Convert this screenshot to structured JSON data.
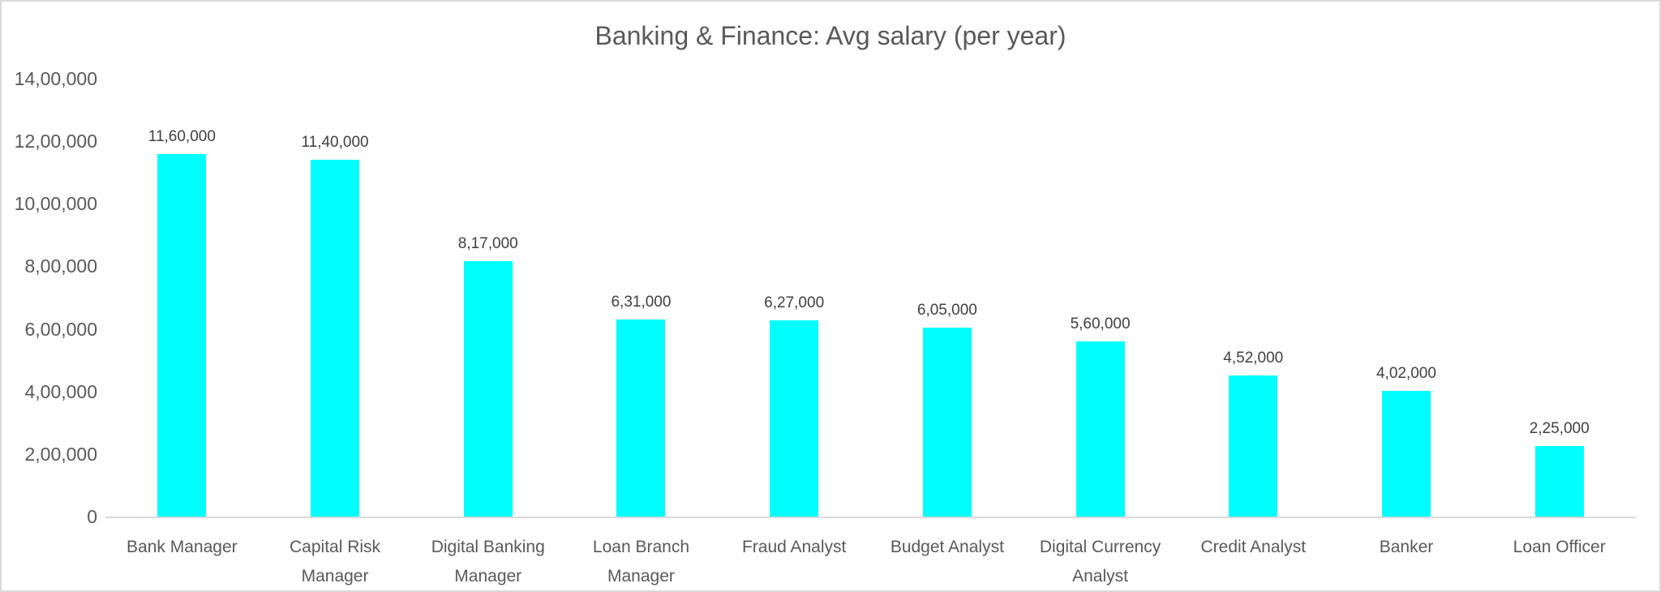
{
  "chart_data": {
    "type": "bar",
    "title": "Banking & Finance: Avg salary (per year)",
    "categories": [
      "Bank Manager",
      "Capital Risk Manager",
      "Digital Banking Manager",
      "Loan Branch Manager",
      "Fraud Analyst",
      "Budget Analyst",
      "Digital Currency Analyst",
      "Credit Analyst",
      "Banker",
      "Loan Officer"
    ],
    "values": [
      1160000,
      1140000,
      817000,
      631000,
      627000,
      605000,
      560000,
      452000,
      402000,
      225000
    ],
    "data_labels": [
      "11,60,000",
      "11,40,000",
      "8,17,000",
      "6,31,000",
      "6,27,000",
      "6,05,000",
      "5,60,000",
      "4,52,000",
      "4,02,000",
      "2,25,000"
    ],
    "y_ticks": [
      {
        "value": 1400000,
        "label": "14,00,000"
      },
      {
        "value": 1200000,
        "label": "12,00,000"
      },
      {
        "value": 1000000,
        "label": "10,00,000"
      },
      {
        "value": 800000,
        "label": "8,00,000"
      },
      {
        "value": 600000,
        "label": "6,00,000"
      },
      {
        "value": 400000,
        "label": "4,00,000"
      },
      {
        "value": 200000,
        "label": "2,00,000"
      },
      {
        "value": 0,
        "label": "0"
      }
    ],
    "ylim": [
      0,
      1400000
    ],
    "xlabel": "",
    "ylabel": "",
    "grid": false,
    "legend": "none",
    "colors": {
      "bar": "#00ffff",
      "title_text": "#595959",
      "axis_tick_text": "#595959",
      "data_label_text": "#404040",
      "axis_line": "#d9d9d9",
      "frame_border": "#d9d9d9",
      "background": "#ffffff"
    }
  }
}
